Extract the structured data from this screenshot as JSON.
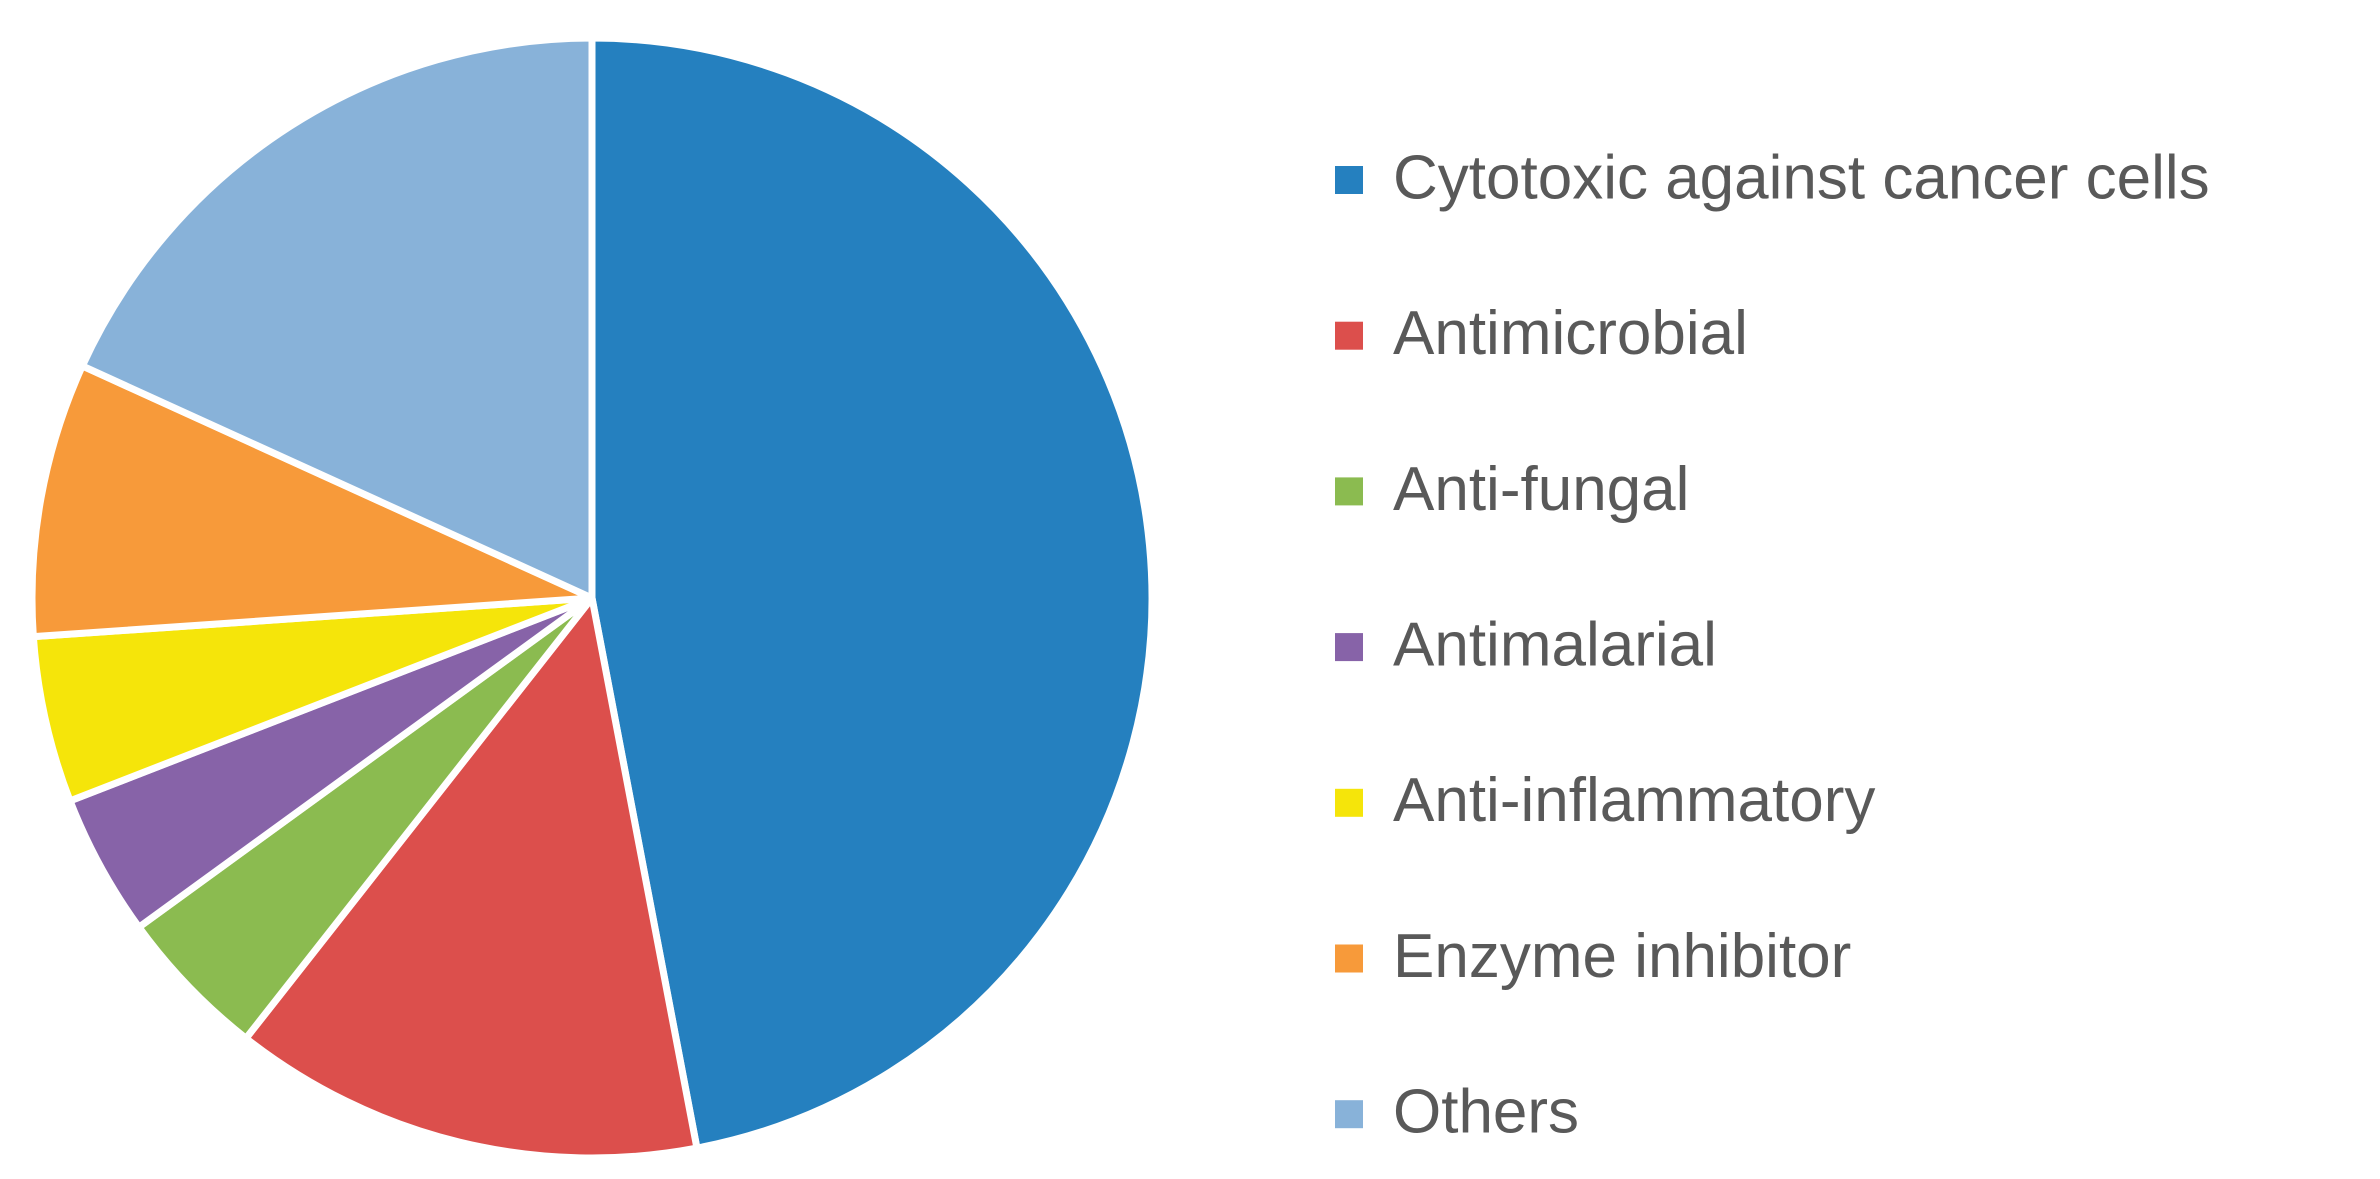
{
  "chart_data": {
    "type": "pie",
    "categories": [
      "Cytotoxic against cancer cells",
      "Antimicrobial",
      "Anti-fungal",
      "Antimalarial",
      "Anti-inflammatory",
      "Enzyme inhibitor",
      "Others"
    ],
    "values": [
      47,
      13.6,
      4.4,
      4.1,
      4.8,
      7.9,
      18.2
    ],
    "colors": [
      "#2580bf",
      "#dc4f4c",
      "#8bbb50",
      "#8763a8",
      "#f5e50a",
      "#f79a3a",
      "#88b2d9"
    ],
    "legend": "right"
  }
}
